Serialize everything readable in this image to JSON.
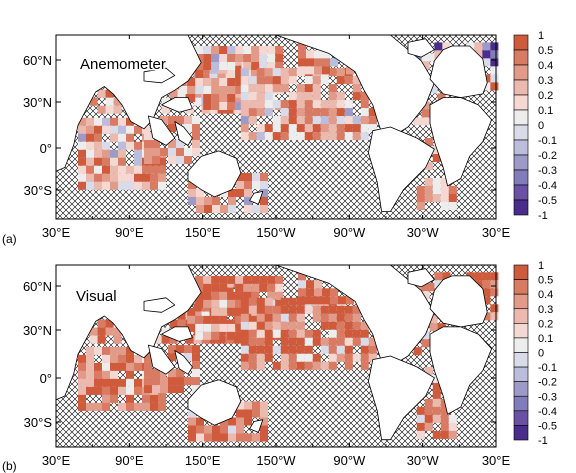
{
  "panels": [
    {
      "id": "a",
      "letter": "(a)",
      "label": "Anemometer",
      "pattern": "anemometer",
      "lon_ticks": [
        "30°E",
        "90°E",
        "150°E",
        "150°W",
        "90°W",
        "30°W",
        "30°E"
      ],
      "lat_ticks": [
        "60°N",
        "30°N",
        "0°",
        "30°S"
      ]
    },
    {
      "id": "b",
      "letter": "(b)",
      "label": "Visual",
      "pattern": "visual",
      "lon_ticks": [
        "30°E",
        "90°E",
        "150°E",
        "150°W",
        "90°W",
        "30°W",
        "30°E"
      ],
      "lat_ticks": [
        "60°N",
        "30°N",
        "0°",
        "30°S"
      ]
    }
  ],
  "colorbar": {
    "labels": [
      "1",
      "0.5",
      "0.4",
      "0.3",
      "0.2",
      "0.1",
      "0",
      "-0.1",
      "-0.2",
      "-0.3",
      "-0.4",
      "-0.5",
      "-1"
    ],
    "colors": [
      "#d05a3c",
      "#d97a63",
      "#e29a89",
      "#ebb9ad",
      "#f4d8d1",
      "#ededed",
      "#dadbe9",
      "#bcbddc",
      "#9e9ac8",
      "#807dba",
      "#6a51a3",
      "#4a2c8c"
    ]
  }
}
